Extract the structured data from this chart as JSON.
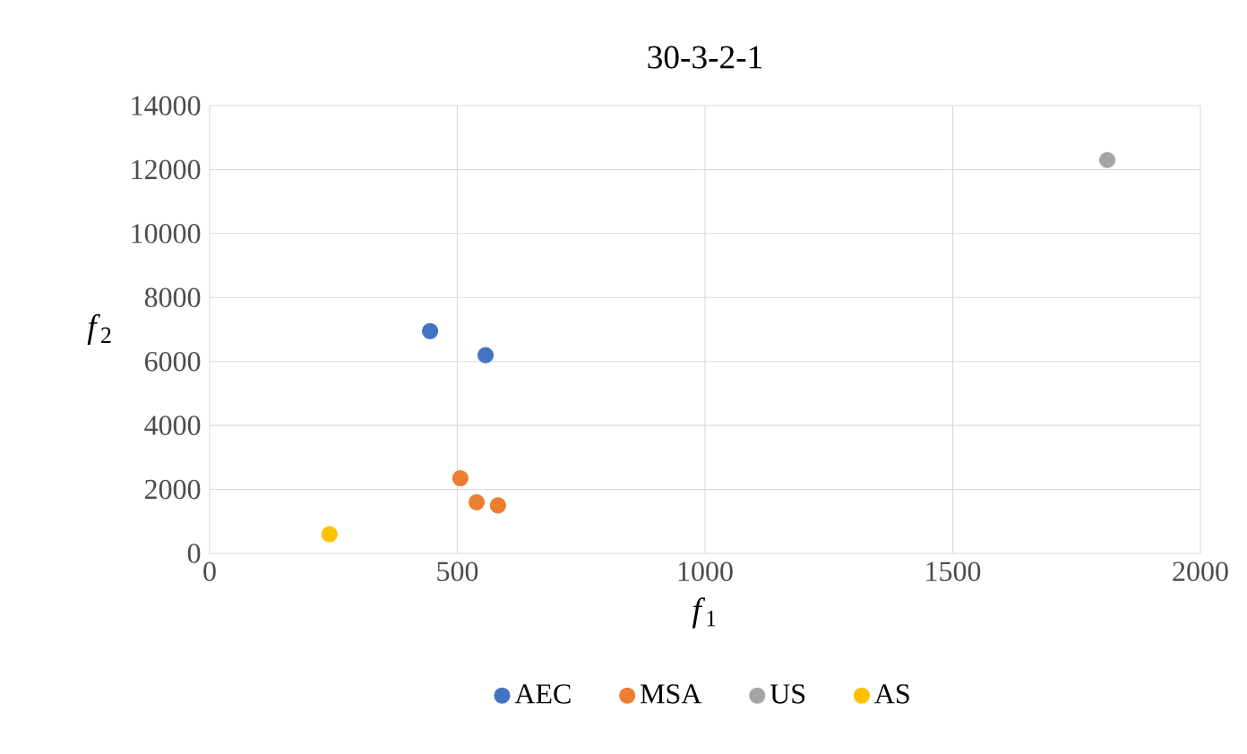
{
  "chart_data": {
    "type": "scatter",
    "title": "30-3-2-1",
    "xlabel": "*f*$_{1}$",
    "ylabel": "*f*$_{2}$",
    "xlim": [
      0,
      2000
    ],
    "xticks": [
      0,
      500,
      1000,
      1500,
      2000
    ],
    "ylim": [
      0,
      14000
    ],
    "yticks": [
      0,
      2000,
      4000,
      6000,
      8000,
      10000,
      12000,
      14000
    ],
    "grid": true,
    "legend": "bottom",
    "marker": "circle",
    "series": [
      {
        "name": "AEC",
        "color": "#4472c4",
        "x": [
          445,
          557
        ],
        "values": [
          6950,
          6200
        ]
      },
      {
        "name": "MSA",
        "color": "#ed7d31",
        "x": [
          506,
          539,
          582
        ],
        "values": [
          2350,
          1600,
          1500
        ]
      },
      {
        "name": "US",
        "color": "#a5a5a5",
        "x": [
          1812
        ],
        "values": [
          12300
        ]
      },
      {
        "name": "AS",
        "color": "#ffc000",
        "x": [
          242
        ],
        "values": [
          600
        ]
      }
    ]
  }
}
